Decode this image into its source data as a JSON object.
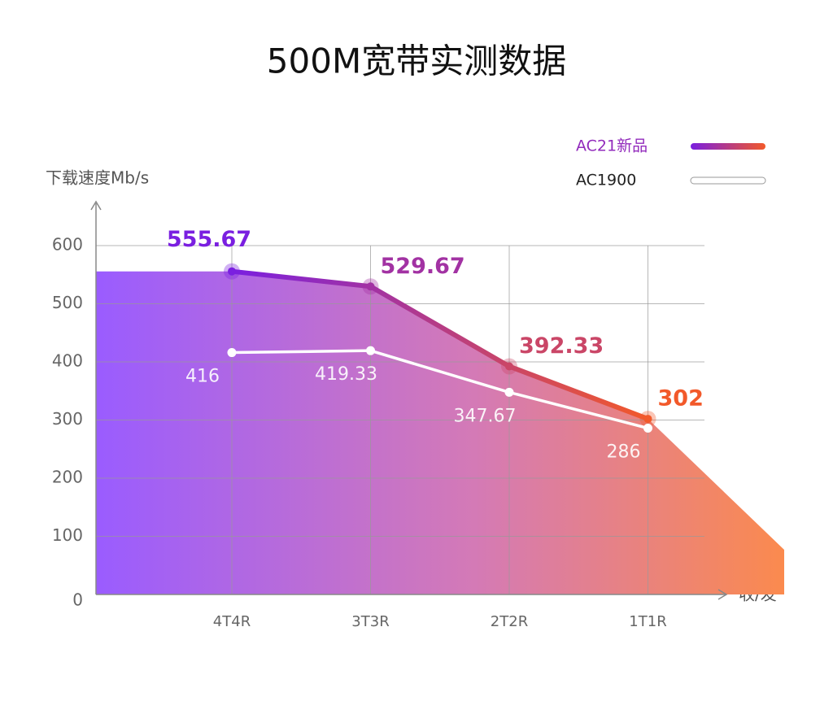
{
  "chart_data": {
    "type": "line",
    "title": "500M宽带实测数据",
    "y_label": "下载速度Mb/s",
    "x_label": "收/发",
    "categories": [
      "4T4R",
      "3T3R",
      "2T2R",
      "1T1R"
    ],
    "series": [
      {
        "name": "AC21新品",
        "colors": [
          "#7a1fe0",
          "#f2592a"
        ],
        "values": [
          555.67,
          529.67,
          392.33,
          302
        ]
      },
      {
        "name": "AC1900",
        "color": "#ffffff",
        "values": [
          416,
          419.33,
          347.67,
          286
        ]
      }
    ],
    "ylim": [
      0,
      600
    ],
    "yticks": [
      0,
      100,
      200,
      300,
      400,
      500,
      600
    ],
    "grid": true,
    "legend": "top-right"
  }
}
